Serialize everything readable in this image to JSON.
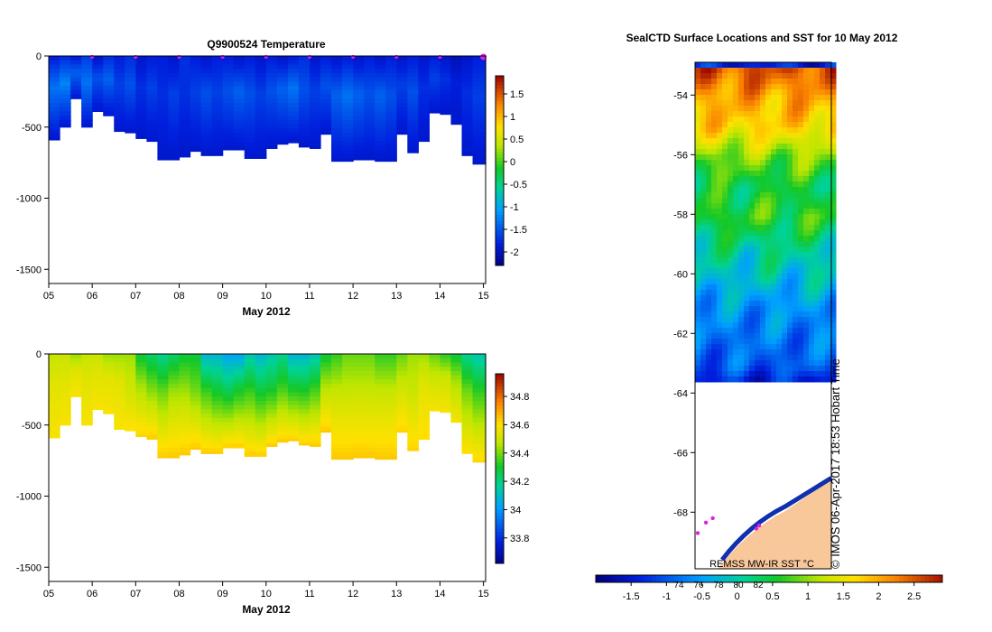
{
  "chart_data": [
    {
      "type": "heatmap",
      "title": "Q9900524  Temperature",
      "xlabel": "May 2012",
      "ylabel": "",
      "xlim": [
        5,
        15.05
      ],
      "ylim": [
        -1600,
        0
      ],
      "x_ticks": [
        "05",
        "06",
        "07",
        "08",
        "09",
        "10",
        "11",
        "12",
        "13",
        "14",
        "15"
      ],
      "y_ticks": [
        "0",
        "-500",
        "-1000",
        "-1500"
      ],
      "colorbar_ticks": [
        "1.5",
        "1",
        "0.5",
        "0",
        "-0.5",
        "-1",
        "-1.5",
        "-2"
      ],
      "colorbar_range": [
        -2.3,
        1.9
      ],
      "profile_days": [
        5.0,
        5.25,
        5.5,
        5.75,
        6.0,
        6.25,
        6.5,
        6.75,
        7.0,
        7.25,
        7.5,
        7.75,
        8.0,
        8.25,
        8.5,
        8.75,
        9.0,
        9.25,
        9.5,
        9.75,
        10.0,
        10.25,
        10.5,
        10.75,
        11.0,
        11.25,
        11.5,
        11.75,
        12.0,
        12.25,
        12.5,
        12.75,
        13.0,
        13.25,
        13.5,
        13.75,
        14.0,
        14.25,
        14.5,
        14.75
      ],
      "profile_max_depth": [
        590,
        500,
        300,
        500,
        390,
        420,
        530,
        540,
        580,
        600,
        730,
        730,
        710,
        670,
        700,
        700,
        660,
        660,
        720,
        720,
        650,
        620,
        610,
        640,
        650,
        550,
        740,
        740,
        730,
        730,
        740,
        740,
        550,
        680,
        600,
        400,
        410,
        480,
        700,
        760
      ],
      "series": [
        {
          "name": "surface",
          "values": [
            -1.8,
            -1.7,
            -1.8,
            -1.6,
            -1.9,
            -1.7,
            -1.8,
            -1.7,
            -1.9,
            -1.8,
            -1.8,
            -1.9,
            -1.7,
            -1.8,
            -1.9,
            -1.8,
            -1.8,
            -1.9,
            -1.8,
            -1.9,
            -1.8,
            -1.9,
            -1.8,
            -1.7,
            -1.9,
            -1.8,
            -1.9,
            -1.8,
            -1.9,
            -1.8,
            -1.9,
            -1.8,
            -1.9,
            -1.8,
            -1.9,
            -1.8,
            -1.9,
            -2.0,
            -1.9,
            -1.8
          ]
        },
        {
          "name": "mid",
          "values": [
            -1.3,
            -1.2,
            -1.4,
            -1.3,
            -1.5,
            -1.4,
            -1.6,
            -1.5,
            -1.7,
            -1.6,
            -1.7,
            -1.6,
            -1.7,
            -1.6,
            -1.5,
            -1.6,
            -1.5,
            -1.4,
            -1.5,
            -1.6,
            -1.5,
            -1.4,
            -1.3,
            -1.5,
            -1.6,
            -1.5,
            -1.4,
            -1.3,
            -1.4,
            -1.5,
            -1.4,
            -1.5,
            -1.6,
            -1.5,
            -1.7,
            -1.6,
            -1.7,
            -1.8,
            -1.7,
            -1.6
          ]
        },
        {
          "name": "deep",
          "values": [
            -1.9,
            -1.9,
            -1.9,
            -1.9,
            -1.9,
            -1.9,
            -1.9,
            -1.9,
            -1.9,
            -1.9,
            -1.9,
            -1.9,
            -1.9,
            -1.9,
            -1.9,
            -1.9,
            -1.9,
            -1.9,
            -1.9,
            -1.9,
            -1.9,
            -1.9,
            -1.9,
            -1.9,
            -1.9,
            -1.9,
            -1.9,
            -1.9,
            -1.9,
            -1.9,
            -1.9,
            -1.9,
            -1.9,
            -1.9,
            -1.9,
            -1.9,
            -1.9,
            -1.9,
            -1.9,
            -1.9
          ]
        }
      ],
      "surface_markers": [
        6,
        7,
        8,
        9,
        10,
        11,
        12,
        13,
        14,
        15
      ]
    },
    {
      "type": "heatmap",
      "title": "",
      "xlabel": "May 2012",
      "ylabel": "",
      "xlim": [
        5,
        15.05
      ],
      "ylim": [
        -1600,
        0
      ],
      "x_ticks": [
        "05",
        "06",
        "07",
        "08",
        "09",
        "10",
        "11",
        "12",
        "13",
        "14",
        "15"
      ],
      "y_ticks": [
        "0",
        "-500",
        "-1000",
        "-1500"
      ],
      "colorbar_ticks": [
        "34.8",
        "34.6",
        "34.4",
        "34.2",
        "34",
        "33.8"
      ],
      "colorbar_range": [
        33.62,
        34.96
      ],
      "series": [
        {
          "name": "surface",
          "values": [
            34.5,
            34.5,
            34.45,
            34.5,
            34.5,
            34.45,
            34.45,
            34.45,
            34.3,
            34.25,
            34.2,
            34.25,
            34.3,
            34.3,
            34.1,
            34.1,
            34.05,
            34.05,
            34.15,
            34.1,
            34.15,
            34.2,
            34.1,
            34.1,
            34.15,
            34.3,
            34.35,
            34.4,
            34.4,
            34.4,
            34.35,
            34.35,
            34.4,
            34.45,
            34.45,
            34.4,
            34.35,
            34.3,
            34.2,
            34.15
          ]
        },
        {
          "name": "mid",
          "values": [
            34.55,
            34.55,
            34.55,
            34.55,
            34.55,
            34.55,
            34.55,
            34.5,
            34.45,
            34.4,
            34.4,
            34.45,
            34.45,
            34.4,
            34.35,
            34.3,
            34.25,
            34.3,
            34.35,
            34.3,
            34.3,
            34.35,
            34.3,
            34.3,
            34.35,
            34.45,
            34.5,
            34.5,
            34.5,
            34.5,
            34.5,
            34.5,
            34.5,
            34.5,
            34.55,
            34.5,
            34.5,
            34.45,
            34.4,
            34.35
          ]
        },
        {
          "name": "deep",
          "values": [
            34.6,
            34.6,
            34.6,
            34.6,
            34.6,
            34.6,
            34.6,
            34.62,
            34.64,
            34.66,
            34.66,
            34.66,
            34.66,
            34.66,
            34.66,
            34.66,
            34.66,
            34.66,
            34.66,
            34.66,
            34.66,
            34.66,
            34.66,
            34.66,
            34.66,
            34.66,
            34.66,
            34.66,
            34.66,
            34.66,
            34.66,
            34.66,
            34.64,
            34.64,
            34.62,
            34.6,
            34.6,
            34.6,
            34.62,
            34.64
          ]
        }
      ]
    },
    {
      "type": "heatmap",
      "title": "SealCTD Surface Locations and SST for 10 May 2012",
      "xlabel": "",
      "ylabel": "",
      "ylim": [
        -69.9,
        -52.9
      ],
      "y_ticks": [
        -54,
        -56,
        -58,
        -60,
        -62,
        -64,
        -66,
        -68
      ],
      "sst_range": [
        -2.0,
        2.9
      ],
      "colorbar_ticks": [
        "-1.5",
        "-1",
        "-0.5",
        "0",
        "0.5",
        "1",
        "1.5",
        "2",
        "2.5"
      ],
      "colorbar_secondary_ticks": [
        "74",
        "76",
        "78",
        "80",
        "82"
      ],
      "sst_by_latitude": [
        {
          "lat": -53.0,
          "sst": 2.5
        },
        {
          "lat": -54.0,
          "sst": 2.0
        },
        {
          "lat": -55.0,
          "sst": 1.7
        },
        {
          "lat": -56.0,
          "sst": 0.9
        },
        {
          "lat": -57.0,
          "sst": 0.4
        },
        {
          "lat": -58.0,
          "sst": 0.6
        },
        {
          "lat": -59.0,
          "sst": 0.1
        },
        {
          "lat": -60.0,
          "sst": -0.2
        },
        {
          "lat": -61.0,
          "sst": -0.6
        },
        {
          "lat": -62.0,
          "sst": -0.8
        },
        {
          "lat": -63.0,
          "sst": -1.0
        },
        {
          "lat": -63.5,
          "sst": -1.4
        }
      ],
      "sst_cutoff_lat": -63.6,
      "seal_locations": [
        {
          "x": 0.02,
          "lat": -68.7
        },
        {
          "x": 0.08,
          "lat": -68.35
        },
        {
          "x": 0.13,
          "lat": -68.2
        },
        {
          "x": 0.45,
          "lat": -68.55
        },
        {
          "x": 0.47,
          "lat": -68.45
        }
      ],
      "credit": "REMSS MW-IR SST °C",
      "timestamp": "© IMOS 06-Apr-2017 18:53 Hobart Time"
    }
  ]
}
